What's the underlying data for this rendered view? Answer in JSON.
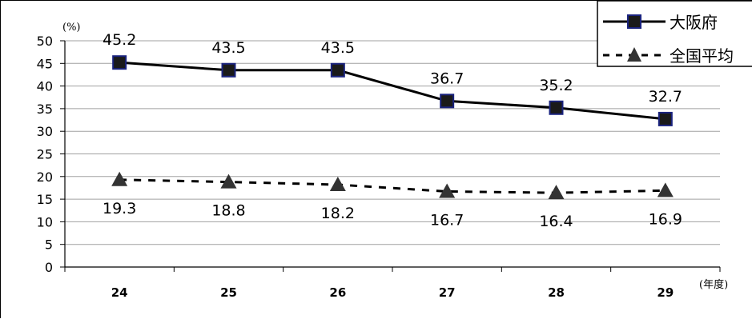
{
  "chart_data": {
    "type": "line",
    "categories": [
      "24",
      "25",
      "26",
      "27",
      "28",
      "29"
    ],
    "series": [
      {
        "name": "大阪府",
        "values": [
          45.2,
          43.5,
          43.5,
          36.7,
          35.2,
          32.7
        ],
        "labels": [
          "45.2",
          "43.5",
          "43.5",
          "36.7",
          "35.2",
          "32.7"
        ],
        "color": "#000000",
        "marker": "square",
        "marker_fill": "#1a1a1a",
        "marker_stroke": "#1a237e",
        "line_style": "solid"
      },
      {
        "name": "全国平均",
        "values": [
          19.3,
          18.8,
          18.2,
          16.7,
          16.4,
          16.9
        ],
        "labels": [
          "19.3",
          "18.8",
          "18.2",
          "16.7",
          "16.4",
          "16.9"
        ],
        "color": "#000000",
        "marker": "triangle",
        "marker_fill": "#333333",
        "line_style": "dashed"
      }
    ],
    "ylim": [
      0,
      50
    ],
    "yticks": [
      "0",
      "5",
      "10",
      "15",
      "20",
      "25",
      "30",
      "35",
      "40",
      "45",
      "50"
    ],
    "y_unit": "(%)",
    "x_unit": "(年度)",
    "grid": "horizontal",
    "legend_position": "top-right"
  }
}
